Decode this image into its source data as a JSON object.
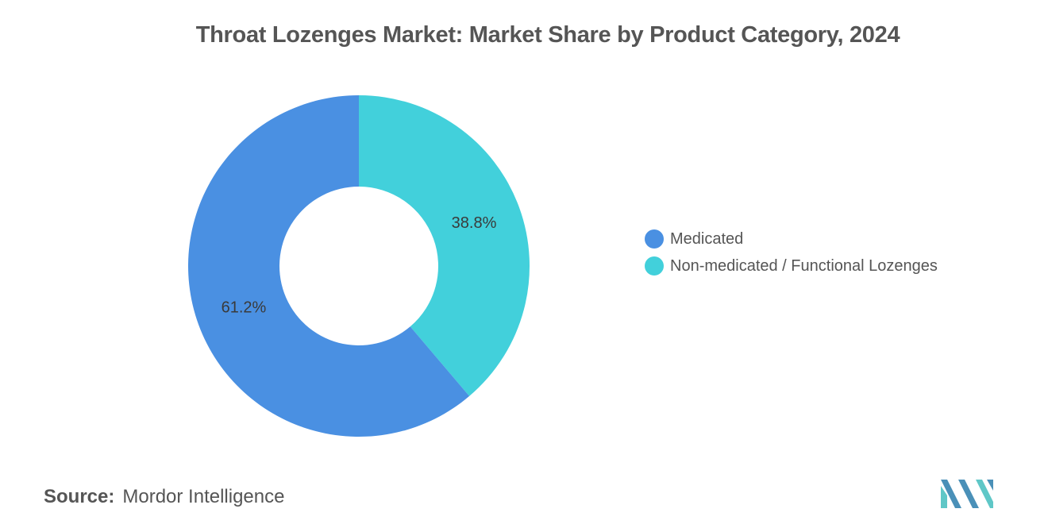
{
  "title": "Throat Lozenges Market: Market Share by Product Category, 2024",
  "chart_data": {
    "type": "pie",
    "title": "Throat Lozenges Market: Market Share by Product Category, 2024",
    "donut": true,
    "legend_position": "right",
    "slices": [
      {
        "name": "Non-medicated / Functional Lozenges",
        "value": 38.8,
        "label": "38.8%",
        "color": "#42d0db"
      },
      {
        "name": "Medicated",
        "value": 61.2,
        "label": "61.2%",
        "color": "#4a90e2"
      }
    ]
  },
  "legend": [
    {
      "label": "Medicated",
      "color": "#4a90e2"
    },
    {
      "label": "Non-medicated / Functional Lozenges",
      "color": "#42d0db"
    }
  ],
  "source": {
    "label": "Source:",
    "value": "Mordor Intelligence"
  },
  "logo": {
    "icon": "mordor-intelligence-logo-icon",
    "colors": [
      "#4a90b8",
      "#5fc7c7"
    ]
  }
}
